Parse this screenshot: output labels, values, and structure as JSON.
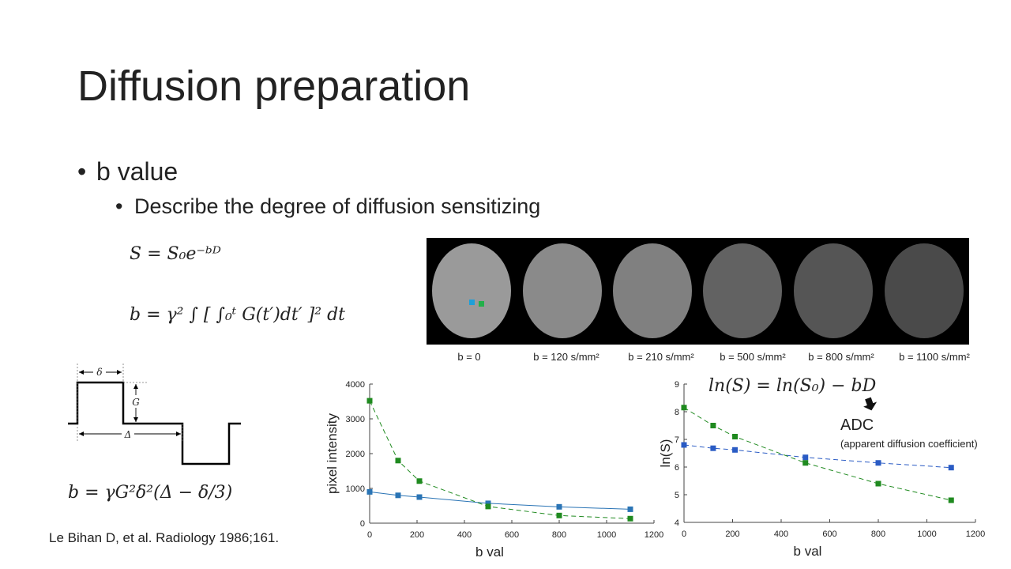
{
  "title": "Diffusion preparation",
  "bullets": [
    {
      "text": "b value",
      "sub": [
        "Describe the degree of diffusion sensitizing"
      ]
    }
  ],
  "equations": [
    "S = S₀e⁻ᵇᴰ",
    "b = γ² ∫ [ ∫₀ᵗ G(t′)dt′ ]² dt",
    "b = γG²δ²(Δ − δ/3)"
  ],
  "pulse_labels": [
    "δ",
    "G",
    "Δ"
  ],
  "image_labels": [
    "b = 0",
    "b = 120 s/mm²",
    "b = 210 s/mm²",
    "b = 500 s/mm²",
    "b = 800 s/mm²",
    "b = 1100 s/mm²"
  ],
  "citation": "Le Bihan D, et al. Radiology 1986;161.",
  "chart_data": [
    {
      "type": "line",
      "xlabel": "b val",
      "ylabel": "pixel intensity",
      "x": [
        0,
        120,
        210,
        500,
        800,
        1100
      ],
      "series": [
        {
          "color": "#2a74b5",
          "dashed": false,
          "values": [
            900,
            800,
            750,
            570,
            470,
            400
          ]
        },
        {
          "color": "#1f8a1f",
          "dashed": true,
          "values": [
            3520,
            1800,
            1210,
            480,
            220,
            130
          ]
        }
      ],
      "xlim": [
        0,
        1200
      ],
      "xticks": [
        0,
        200,
        400,
        600,
        800,
        1000,
        1200
      ],
      "ylim": [
        0,
        4000
      ],
      "yticks": [
        0,
        1000,
        2000,
        3000,
        4000
      ]
    },
    {
      "type": "line",
      "xlabel": "b val",
      "ylabel": "ln(S)",
      "x": [
        0,
        120,
        210,
        500,
        800,
        1100
      ],
      "series": [
        {
          "color": "#2a5bc4",
          "dashed": true,
          "values": [
            6.8,
            6.68,
            6.62,
            6.35,
            6.15,
            5.98
          ]
        },
        {
          "color": "#1f8a1f",
          "dashed": true,
          "values": [
            8.15,
            7.5,
            7.1,
            6.15,
            5.4,
            4.8
          ]
        }
      ],
      "xlim": [
        0,
        1200
      ],
      "xticks": [
        0,
        200,
        400,
        600,
        800,
        1000,
        1200
      ],
      "ylim": [
        4,
        9
      ],
      "yticks": [
        4,
        5,
        6,
        7,
        8,
        9
      ],
      "annotations": [
        "ln(S) = ln(S₀) − bD",
        "ADC",
        "(apparent diffusion coefficient)"
      ]
    }
  ]
}
